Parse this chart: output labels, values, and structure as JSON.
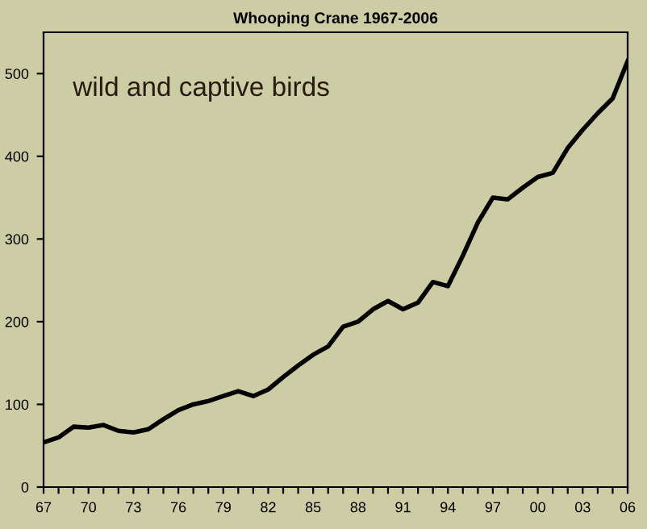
{
  "chart_data": {
    "type": "line",
    "title": "Whooping Crane 1967-2006",
    "categories": [
      "67",
      null,
      null,
      "70",
      null,
      null,
      "73",
      null,
      null,
      "76",
      null,
      null,
      "79",
      null,
      null,
      "82",
      null,
      null,
      "85",
      null,
      null,
      "88",
      null,
      null,
      "91",
      null,
      null,
      "94",
      null,
      null,
      "97",
      null,
      null,
      "00",
      null,
      null,
      "03",
      null,
      null,
      "06"
    ],
    "series": [
      {
        "color": "#000000",
        "values": [
          54,
          60,
          73,
          72,
          75,
          68,
          66,
          70,
          82,
          93,
          100,
          104,
          110,
          116,
          110,
          118,
          133,
          147,
          160,
          170,
          194,
          200,
          215,
          225,
          215,
          223,
          248,
          243,
          280,
          320,
          350,
          348,
          362,
          375,
          380,
          410,
          432,
          452,
          470,
          515
        ]
      }
    ],
    "ylim": [
      0,
      550
    ],
    "yticks": [
      0,
      100,
      200,
      300,
      400,
      500
    ],
    "grid": false,
    "marker": "none",
    "line_style": "solid",
    "annotations": [
      {
        "text": "wild and captive birds"
      }
    ]
  }
}
